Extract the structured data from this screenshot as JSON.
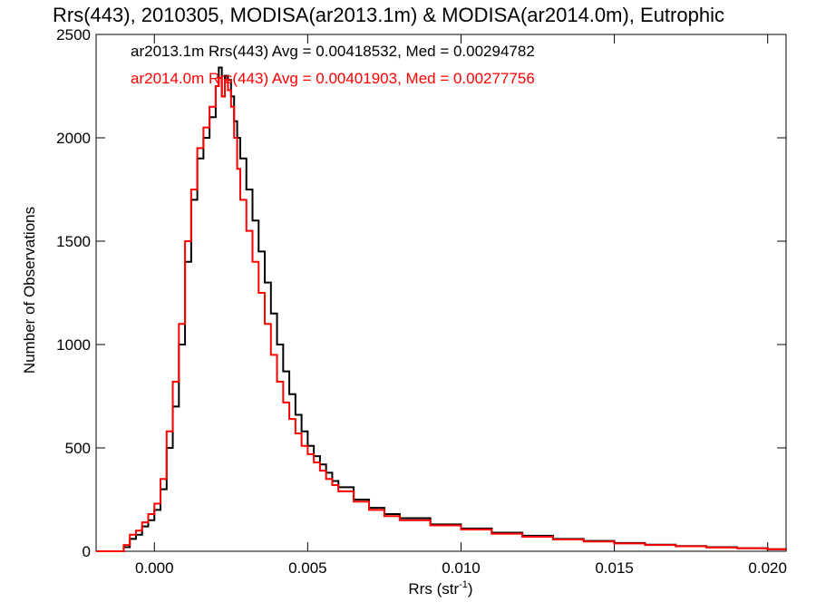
{
  "chart_data": {
    "type": "line",
    "title": "Rrs(443), 2010305, MODISA(ar2013.1m) & MODISA(ar2014.0m), Eutrophic",
    "xlabel": "Rrs (str",
    "xlabel_sup": "-1",
    "xlabel_end": ")",
    "ylabel": "Number of Observations",
    "xlim": [
      -0.0019,
      0.0206
    ],
    "ylim": [
      0,
      2500
    ],
    "x_ticks": [
      0.0,
      0.005,
      0.01,
      0.015,
      0.02
    ],
    "x_tick_labels": [
      "0.000",
      "0.005",
      "0.010",
      "0.015",
      "0.020"
    ],
    "y_ticks": [
      0,
      500,
      1000,
      1500,
      2000,
      2500
    ],
    "y_tick_labels": [
      "0",
      "500",
      "1000",
      "1500",
      "2000",
      "2500"
    ],
    "grid": false,
    "legend_position": "top-left",
    "series": [
      {
        "name": "ar2013.1m",
        "legend_text": "ar2013.1m Rrs(443) Avg = 0.00418532, Med = 0.00294782",
        "color": "#000000",
        "x": [
          -0.0019,
          -0.0011,
          -0.001,
          -0.0008,
          -0.0006,
          -0.0004,
          -0.0002,
          0.0,
          0.0002,
          0.0004,
          0.0006,
          0.0008,
          0.001,
          0.0012,
          0.0014,
          0.0016,
          0.0018,
          0.002,
          0.0021,
          0.0022,
          0.0023,
          0.0024,
          0.0025,
          0.0026,
          0.0027,
          0.0028,
          0.003,
          0.0032,
          0.0034,
          0.0036,
          0.0038,
          0.004,
          0.0042,
          0.0044,
          0.0046,
          0.0048,
          0.005,
          0.0052,
          0.0054,
          0.0056,
          0.0058,
          0.006,
          0.0065,
          0.007,
          0.0075,
          0.008,
          0.009,
          0.01,
          0.011,
          0.012,
          0.013,
          0.014,
          0.015,
          0.016,
          0.017,
          0.018,
          0.019,
          0.02,
          0.0206
        ],
        "y": [
          0,
          0,
          20,
          60,
          80,
          120,
          150,
          200,
          300,
          500,
          700,
          1000,
          1400,
          1700,
          1900,
          2000,
          2100,
          2250,
          2340,
          2200,
          2300,
          2280,
          2200,
          2080,
          2000,
          1900,
          1750,
          1600,
          1450,
          1300,
          1150,
          1000,
          870,
          760,
          660,
          580,
          510,
          460,
          420,
          380,
          340,
          310,
          250,
          210,
          180,
          160,
          130,
          110,
          90,
          75,
          60,
          50,
          40,
          32,
          25,
          20,
          15,
          10,
          8
        ]
      },
      {
        "name": "ar2014.0m",
        "legend_text": "ar2014.0m Rrs(443) Avg = 0.00401903, Med = 0.00277756",
        "color": "#ff0000",
        "x": [
          -0.0019,
          -0.0011,
          -0.001,
          -0.0008,
          -0.0006,
          -0.0004,
          -0.0002,
          0.0,
          0.0002,
          0.0004,
          0.0006,
          0.0008,
          0.001,
          0.0012,
          0.0014,
          0.0016,
          0.0018,
          0.002,
          0.0021,
          0.0022,
          0.0023,
          0.0024,
          0.0025,
          0.0026,
          0.0027,
          0.0028,
          0.003,
          0.0032,
          0.0034,
          0.0036,
          0.0038,
          0.004,
          0.0042,
          0.0044,
          0.0046,
          0.0048,
          0.005,
          0.0052,
          0.0054,
          0.0056,
          0.0058,
          0.006,
          0.0065,
          0.007,
          0.0075,
          0.008,
          0.009,
          0.01,
          0.011,
          0.012,
          0.013,
          0.014,
          0.015,
          0.016,
          0.017,
          0.018,
          0.019,
          0.02,
          0.0206
        ],
        "y": [
          0,
          0,
          30,
          80,
          100,
          140,
          180,
          230,
          350,
          580,
          820,
          1100,
          1500,
          1750,
          1950,
          2050,
          2150,
          2250,
          2290,
          2200,
          2280,
          2230,
          2150,
          2000,
          1850,
          1700,
          1550,
          1400,
          1250,
          1100,
          950,
          820,
          720,
          640,
          570,
          510,
          470,
          430,
          390,
          350,
          320,
          290,
          240,
          200,
          170,
          150,
          125,
          105,
          85,
          70,
          57,
          47,
          38,
          30,
          24,
          18,
          14,
          10,
          7
        ]
      }
    ]
  }
}
